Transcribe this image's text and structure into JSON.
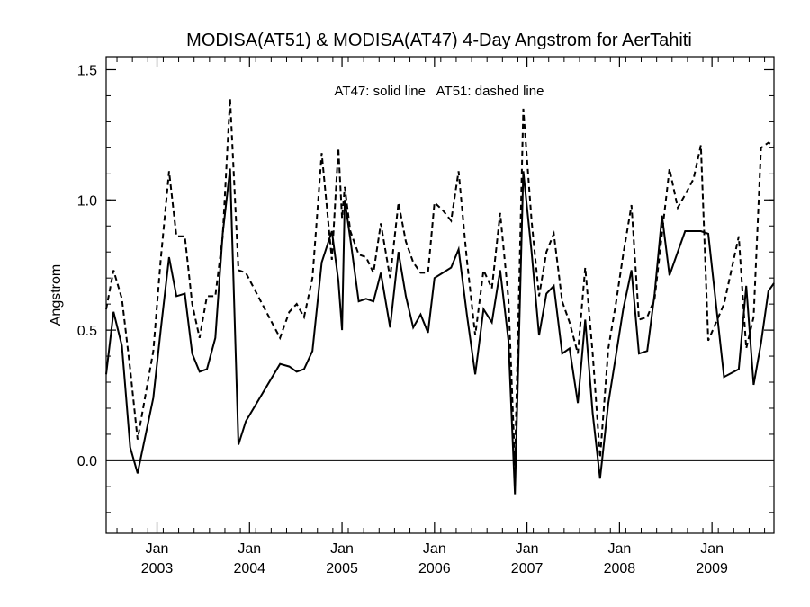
{
  "chart_data": {
    "type": "line",
    "title": "MODISA(AT51) & MODISA(AT47) 4-Day Angstrom for AerTahiti",
    "xlabel": "",
    "ylabel": "Angstrom",
    "annotation": "AT47: solid line   AT51: dashed line",
    "xlim": [
      2002.45,
      2009.67
    ],
    "ylim": [
      -0.28,
      1.55
    ],
    "y_ticks": [
      0.0,
      0.5,
      1.0,
      1.5
    ],
    "y_tick_labels": [
      "0.0",
      "0.5",
      "1.0",
      "1.5"
    ],
    "y_minor_step": 0.1,
    "x_ticks": [
      {
        "x": 2003.0,
        "month": "Jan",
        "year": "2003"
      },
      {
        "x": 2004.0,
        "month": "Jan",
        "year": "2004"
      },
      {
        "x": 2005.0,
        "month": "Jan",
        "year": "2005"
      },
      {
        "x": 2006.0,
        "month": "Jan",
        "year": "2006"
      },
      {
        "x": 2007.0,
        "month": "Jan",
        "year": "2007"
      },
      {
        "x": 2008.0,
        "month": "Jan",
        "year": "2008"
      },
      {
        "x": 2009.0,
        "month": "Jan",
        "year": "2009"
      }
    ],
    "x_minor_step": 0.1667,
    "reference_line": 0.0,
    "grid": false,
    "series": [
      {
        "name": "AT47",
        "style": "solid",
        "color": "#000000",
        "x": [
          2002.45,
          2002.53,
          2002.62,
          2002.71,
          2002.79,
          2002.96,
          2003.04,
          2003.13,
          2003.21,
          2003.3,
          2003.38,
          2003.46,
          2003.54,
          2003.63,
          2003.71,
          2003.79,
          2003.88,
          2003.96,
          2004.33,
          2004.43,
          2004.51,
          2004.59,
          2004.68,
          2004.78,
          2004.89,
          2004.96,
          2005.0,
          2005.03,
          2005.09,
          2005.18,
          2005.26,
          2005.34,
          2005.42,
          2005.52,
          2005.61,
          2005.69,
          2005.77,
          2005.85,
          2005.93,
          2006.0,
          2006.09,
          2006.18,
          2006.26,
          2006.35,
          2006.44,
          2006.53,
          2006.62,
          2006.71,
          2006.8,
          2006.87,
          2006.96,
          2007.05,
          2007.13,
          2007.21,
          2007.29,
          2007.38,
          2007.46,
          2007.55,
          2007.63,
          2007.71,
          2007.79,
          2007.88,
          2007.96,
          2008.04,
          2008.13,
          2008.21,
          2008.3,
          2008.38,
          2008.46,
          2008.54,
          2008.63,
          2008.71,
          2008.8,
          2008.88,
          2008.96,
          2009.13,
          2009.29,
          2009.37,
          2009.45,
          2009.53,
          2009.61,
          2009.67
        ],
        "values": [
          0.33,
          0.57,
          0.44,
          0.05,
          -0.05,
          0.24,
          0.5,
          0.78,
          0.63,
          0.64,
          0.41,
          0.34,
          0.35,
          0.47,
          0.87,
          1.12,
          0.06,
          0.15,
          0.37,
          0.36,
          0.34,
          0.35,
          0.42,
          0.76,
          0.88,
          0.69,
          0.5,
          1.0,
          0.85,
          0.61,
          0.62,
          0.61,
          0.72,
          0.51,
          0.8,
          0.63,
          0.51,
          0.56,
          0.49,
          0.7,
          0.72,
          0.74,
          0.81,
          0.56,
          0.33,
          0.58,
          0.53,
          0.73,
          0.46,
          -0.13,
          1.11,
          0.8,
          0.48,
          0.64,
          0.67,
          0.41,
          0.43,
          0.22,
          0.54,
          0.18,
          -0.07,
          0.22,
          0.4,
          0.58,
          0.73,
          0.41,
          0.42,
          0.64,
          0.94,
          0.71,
          0.8,
          0.88,
          0.88,
          0.88,
          0.87,
          0.32,
          0.35,
          0.67,
          0.29,
          0.45,
          0.65,
          0.68
        ]
      },
      {
        "name": "AT51",
        "style": "dashed",
        "color": "#000000",
        "x": [
          2002.45,
          2002.53,
          2002.62,
          2002.71,
          2002.79,
          2002.96,
          2003.04,
          2003.13,
          2003.21,
          2003.3,
          2003.38,
          2003.46,
          2003.54,
          2003.63,
          2003.71,
          2003.79,
          2003.88,
          2003.96,
          2004.33,
          2004.43,
          2004.51,
          2004.59,
          2004.68,
          2004.78,
          2004.89,
          2004.96,
          2005.0,
          2005.03,
          2005.09,
          2005.18,
          2005.26,
          2005.34,
          2005.42,
          2005.52,
          2005.61,
          2005.69,
          2005.77,
          2005.85,
          2005.93,
          2006.0,
          2006.09,
          2006.18,
          2006.26,
          2006.35,
          2006.44,
          2006.53,
          2006.62,
          2006.71,
          2006.8,
          2006.87,
          2006.96,
          2007.05,
          2007.13,
          2007.21,
          2007.29,
          2007.38,
          2007.46,
          2007.55,
          2007.63,
          2007.71,
          2007.79,
          2007.88,
          2007.96,
          2008.04,
          2008.13,
          2008.21,
          2008.3,
          2008.38,
          2008.46,
          2008.54,
          2008.63,
          2008.71,
          2008.8,
          2008.88,
          2008.96,
          2009.13,
          2009.29,
          2009.37,
          2009.45,
          2009.53,
          2009.61,
          2009.67
        ],
        "values": [
          0.58,
          0.73,
          0.62,
          0.35,
          0.08,
          0.42,
          0.77,
          1.11,
          0.86,
          0.86,
          0.6,
          0.47,
          0.63,
          0.63,
          0.86,
          1.39,
          0.73,
          0.72,
          0.47,
          0.57,
          0.6,
          0.55,
          0.7,
          1.18,
          0.77,
          1.2,
          0.93,
          1.05,
          0.88,
          0.79,
          0.78,
          0.72,
          0.91,
          0.7,
          0.99,
          0.84,
          0.76,
          0.72,
          0.72,
          0.99,
          0.96,
          0.92,
          1.11,
          0.77,
          0.48,
          0.73,
          0.66,
          0.95,
          0.62,
          -0.02,
          1.35,
          0.92,
          0.63,
          0.8,
          0.87,
          0.61,
          0.53,
          0.41,
          0.74,
          0.41,
          0.01,
          0.43,
          0.6,
          0.79,
          0.98,
          0.54,
          0.55,
          0.62,
          0.87,
          1.12,
          0.97,
          1.02,
          1.08,
          1.21,
          0.46,
          0.6,
          0.86,
          0.43,
          0.55,
          1.2,
          1.22,
          1.21
        ]
      }
    ]
  }
}
